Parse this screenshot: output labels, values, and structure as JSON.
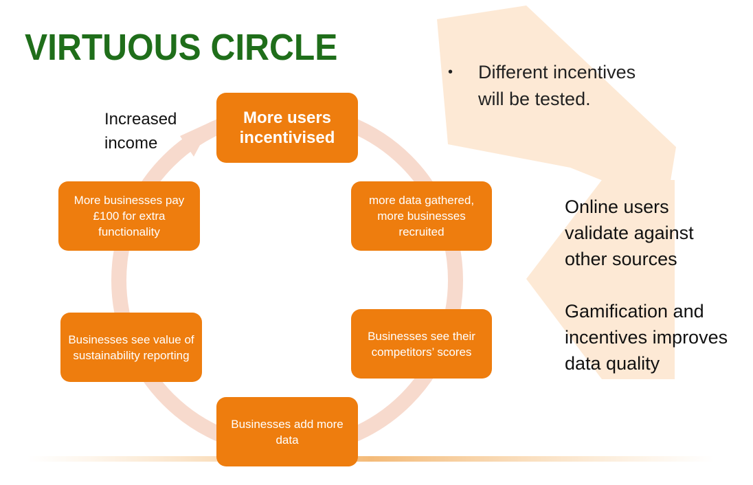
{
  "title": "VIRTUOUS CIRCLE",
  "colors": {
    "title": "#1f6e1a",
    "box": "#ee7d0e",
    "ring": "#f5d5c8",
    "arrow_bg": "#fde9d5"
  },
  "cycle": {
    "top": "More users incentivised",
    "upper_right": "more data gathered, more businesses recruited",
    "lower_right": "Businesses see their competitors’ scores",
    "bottom": "Businesses add more data",
    "lower_left": "Businesses see value of sustainability reporting",
    "upper_left": "More businesses pay £100 for extra functionality"
  },
  "annotations": {
    "increased_income": "Increased income"
  },
  "bullets": [
    "Different incentives will be tested."
  ],
  "side_notes": [
    "Online users validate against other sources",
    "Gamification and incentives improves data quality"
  ]
}
